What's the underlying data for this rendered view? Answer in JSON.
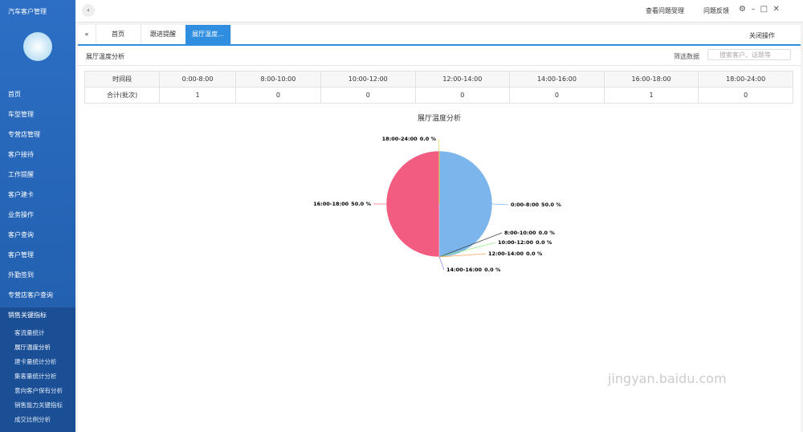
{
  "app_title": "汽车客户管理",
  "menu": [
    "首页",
    "车型管理",
    "专营店管理",
    "客户接待",
    "工作提醒",
    "客户建卡",
    "业务操作",
    "客户查询",
    "客户管理",
    "外勤签到",
    "专营店客户查询",
    "销售关键指标"
  ],
  "submenu": [
    "客流量统计",
    "展厅温度分析",
    "建卡量统计分析",
    "集客量统计分析",
    "意向客户保有分析",
    "销售能力关键指标",
    "成交比例分析"
  ],
  "topbar": {
    "issues": "查看问题受理",
    "feedback": "问题反馈"
  },
  "tabs": [
    "首页",
    "跟进提醒",
    "展厅温度..."
  ],
  "close_ops": "关闭操作",
  "panel": {
    "title": "展厅温度分析",
    "filter": "筛选数据",
    "search_placeholder": "搜索客户、话题等"
  },
  "table": {
    "header": [
      "时间段",
      "0:00-8:00",
      "8:00-10:00",
      "10:00-12:00",
      "12:00-14:00",
      "14:00-16:00",
      "16:00-18:00",
      "18:00-24:00"
    ],
    "rows": [
      [
        "合计(批次)",
        "1",
        "0",
        "0",
        "0",
        "0",
        "1",
        "0"
      ]
    ]
  },
  "chart_data": {
    "type": "pie",
    "title": "展厅温度分析",
    "categories": [
      "0:00-8:00",
      "8:00-10:00",
      "10:00-12:00",
      "12:00-14:00",
      "14:00-16:00",
      "16:00-18:00",
      "18:00-24:00"
    ],
    "values": [
      50,
      0,
      0,
      0,
      0,
      50,
      0
    ],
    "value_labels": [
      "50.0 %",
      "0.0 %",
      "0.0 %",
      "0.0 %",
      "0.0 %",
      "50.0 %",
      "0.0 %"
    ],
    "colors": [
      "#7cb5ec",
      "#434348",
      "#90ed7d",
      "#f7a35c",
      "#8085e9",
      "#f15c80",
      "#e4d354"
    ]
  },
  "watermark": "jingyan.baidu.com"
}
